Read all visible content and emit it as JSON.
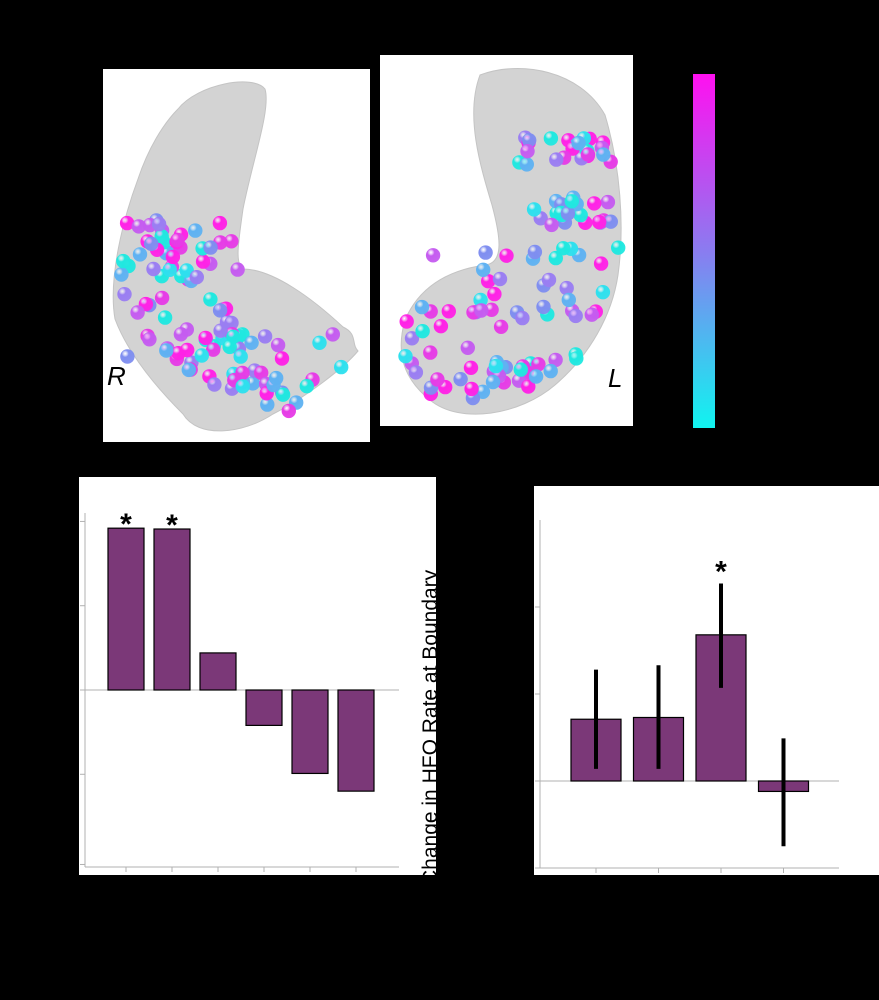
{
  "brains": {
    "right_label": "R",
    "left_label": "L"
  },
  "colors": {
    "bar_fill": "#7b3878",
    "bar_stroke": "#000000",
    "axis_line": "#b0b0b0",
    "colorbar_top": "#ff10f0",
    "colorbar_mid": "#8a7cf0",
    "colorbar_bottom": "#10f4f0",
    "brain_fill": "#d3d3d3"
  },
  "chart_data": [
    {
      "type": "bar",
      "ylim": [
        -2.1,
        2.1
      ],
      "values": [
        1.92,
        1.91,
        0.44,
        -0.42,
        -0.99,
        -1.2
      ],
      "significance": [
        "*",
        "*",
        "",
        "",
        "",
        ""
      ],
      "axis_at_zero": true
    },
    {
      "type": "bar",
      "ylabel": "Change in HFO Rate at Boundary",
      "ylim": [
        -1.0,
        3.0
      ],
      "values": [
        0.71,
        0.73,
        1.68,
        -0.12
      ],
      "error_upper": [
        1.28,
        1.33,
        2.27,
        0.49
      ],
      "error_lower": [
        0.14,
        0.14,
        1.07,
        -0.75
      ],
      "significance": [
        "",
        "",
        "*",
        ""
      ],
      "axis_at_zero": true
    }
  ]
}
